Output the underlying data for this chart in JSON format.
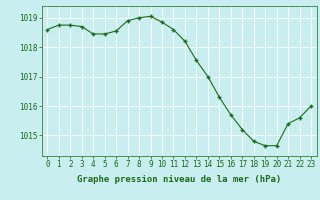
{
  "hours": [
    0,
    1,
    2,
    3,
    4,
    5,
    6,
    7,
    8,
    9,
    10,
    11,
    12,
    13,
    14,
    15,
    16,
    17,
    18,
    19,
    20,
    21,
    22,
    23
  ],
  "pressure": [
    1018.6,
    1018.75,
    1018.75,
    1018.7,
    1018.45,
    1018.45,
    1018.55,
    1018.9,
    1019.0,
    1019.05,
    1018.85,
    1018.6,
    1018.2,
    1017.55,
    1017.0,
    1016.3,
    1015.7,
    1015.2,
    1014.8,
    1014.65,
    1014.65,
    1015.4,
    1015.6,
    1016.0
  ],
  "line_color": "#1a6b1a",
  "marker": "+",
  "marker_size": 3,
  "background_color": "#c8eef0",
  "grid_color": "#ffffff",
  "xlabel": "Graphe pression niveau de la mer (hPa)",
  "ylim": [
    1014.3,
    1019.4
  ],
  "yticks": [
    1015,
    1016,
    1017,
    1018,
    1019
  ],
  "xticks": [
    0,
    1,
    2,
    3,
    4,
    5,
    6,
    7,
    8,
    9,
    10,
    11,
    12,
    13,
    14,
    15,
    16,
    17,
    18,
    19,
    20,
    21,
    22,
    23
  ],
  "tick_color": "#1a6b1a",
  "font_size_xlabel": 6.5,
  "font_size_ticks": 5.5,
  "linewidth": 0.8,
  "markeredgewidth": 1.0
}
